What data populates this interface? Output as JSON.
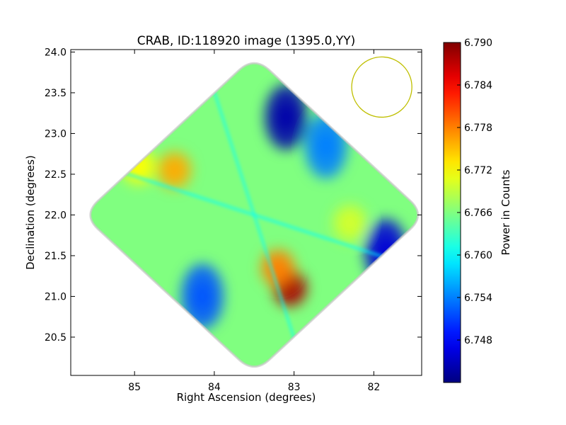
{
  "chart_data": {
    "type": "heatmap",
    "title": "CRAB, ID:118920 image (1395.0,YY)",
    "xlabel": "Right Ascension (degrees)",
    "ylabel": "Declination (degrees)",
    "xlim": [
      85.8,
      81.4
    ],
    "ylim": [
      20.03,
      24.03
    ],
    "x_ticks": [
      85,
      84,
      83,
      82
    ],
    "x_tick_labels": [
      "85",
      "84",
      "83",
      "82"
    ],
    "y_ticks": [
      20.5,
      21.0,
      21.5,
      22.0,
      22.5,
      23.0,
      23.5,
      24.0
    ],
    "y_tick_labels": [
      "20.5",
      "21.0",
      "21.5",
      "22.0",
      "22.5",
      "23.0",
      "23.5",
      "24.0"
    ],
    "colorbar": {
      "label": "Power in Counts",
      "colormap": "jet",
      "range": [
        6.742,
        6.79
      ],
      "ticks": [
        6.748,
        6.754,
        6.76,
        6.766,
        6.772,
        6.778,
        6.784,
        6.79
      ],
      "tick_labels": [
        "6.748",
        "6.754",
        "6.760",
        "6.766",
        "6.772",
        "6.778",
        "6.784",
        "6.790"
      ]
    },
    "footprint": {
      "shape": "diamond",
      "center": [
        83.5,
        22.0
      ],
      "half_width_ra": 2.15,
      "half_height_dec": 1.95
    },
    "background_level": 6.766,
    "features": [
      {
        "kind": "minimum",
        "ra": 83.1,
        "dec": 23.2,
        "value": 6.744
      },
      {
        "kind": "minimum",
        "ra": 81.85,
        "dec": 21.55,
        "value": 6.746
      },
      {
        "kind": "minimum",
        "ra": 84.15,
        "dec": 21.0,
        "value": 6.752
      },
      {
        "kind": "minimum",
        "ra": 82.6,
        "dec": 22.85,
        "value": 6.754
      },
      {
        "kind": "maximum",
        "ra": 83.05,
        "dec": 21.1,
        "value": 6.788
      },
      {
        "kind": "maximum",
        "ra": 83.2,
        "dec": 21.35,
        "value": 6.778
      },
      {
        "kind": "maximum",
        "ra": 84.5,
        "dec": 22.55,
        "value": 6.776
      },
      {
        "kind": "maximum",
        "ra": 84.95,
        "dec": 22.6,
        "value": 6.772
      },
      {
        "kind": "maximum",
        "ra": 82.3,
        "dec": 21.9,
        "value": 6.77
      }
    ],
    "beam": {
      "shape": "circle",
      "ra": 81.9,
      "dec": 23.57,
      "radius_deg": 0.37,
      "color": "#bfbf00"
    },
    "grid": false,
    "legend": "none"
  }
}
